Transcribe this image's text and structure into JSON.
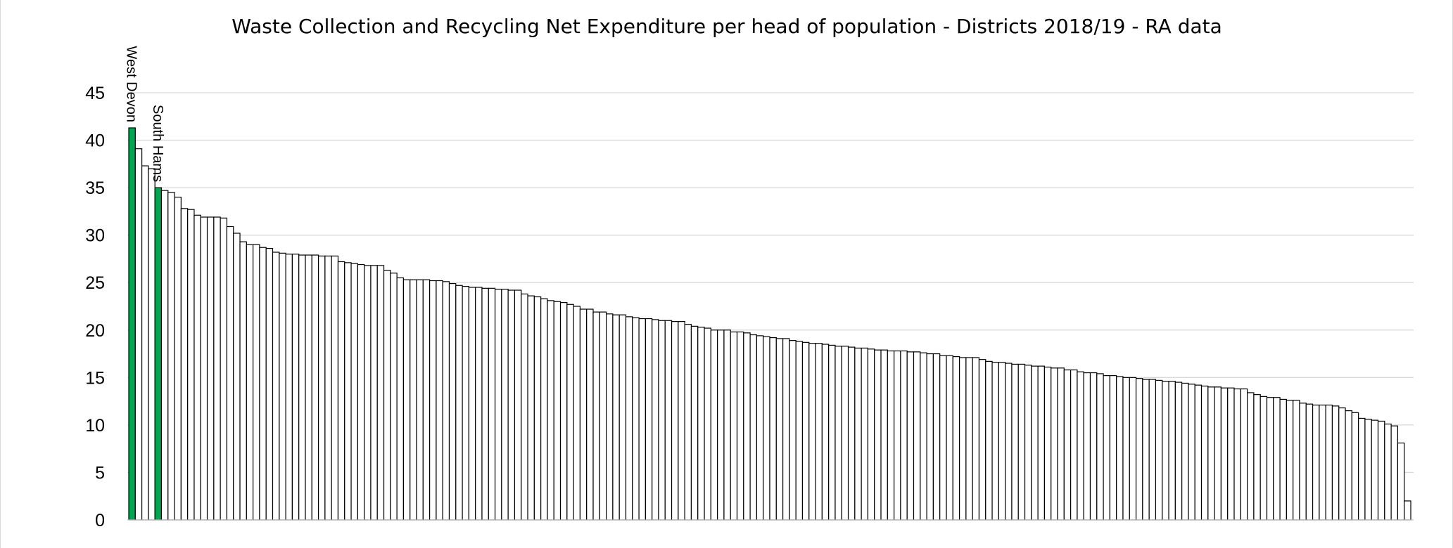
{
  "chart_data": {
    "type": "bar",
    "title": "Waste Collection and Recycling Net Expenditure per head of population - Districts 2018/19 - RA data",
    "xlabel": "",
    "ylabel": "",
    "ylim": [
      0,
      45
    ],
    "yticks": [
      0,
      5,
      10,
      15,
      20,
      25,
      30,
      35,
      40,
      45
    ],
    "grid": true,
    "legend": "none",
    "colors": {
      "highlight": "#00a651",
      "bar_fill": "#ffffff",
      "bar_stroke": "#000000",
      "grid": "#d9d9d9"
    },
    "highlights": [
      {
        "label": "West Devon",
        "index": 0
      },
      {
        "label": "South Hams",
        "index": 4
      }
    ],
    "values": [
      41.3,
      39.1,
      37.3,
      37.0,
      35.0,
      34.7,
      34.5,
      34.0,
      32.8,
      32.7,
      32.1,
      31.9,
      31.9,
      31.9,
      31.8,
      30.9,
      30.2,
      29.3,
      29.0,
      29.0,
      28.7,
      28.6,
      28.2,
      28.1,
      28.0,
      28.0,
      27.9,
      27.9,
      27.9,
      27.8,
      27.8,
      27.8,
      27.2,
      27.1,
      27.0,
      26.9,
      26.8,
      26.8,
      26.8,
      26.3,
      26.0,
      25.5,
      25.3,
      25.3,
      25.3,
      25.3,
      25.2,
      25.2,
      25.1,
      24.9,
      24.7,
      24.6,
      24.5,
      24.5,
      24.4,
      24.4,
      24.3,
      24.3,
      24.2,
      24.2,
      23.8,
      23.6,
      23.5,
      23.3,
      23.1,
      23.0,
      22.9,
      22.7,
      22.5,
      22.2,
      22.2,
      21.9,
      21.9,
      21.7,
      21.6,
      21.6,
      21.4,
      21.3,
      21.2,
      21.2,
      21.1,
      21.0,
      21.0,
      20.9,
      20.9,
      20.6,
      20.4,
      20.3,
      20.2,
      20.0,
      20.0,
      20.0,
      19.8,
      19.8,
      19.7,
      19.5,
      19.4,
      19.3,
      19.2,
      19.1,
      19.1,
      18.9,
      18.8,
      18.7,
      18.6,
      18.6,
      18.5,
      18.4,
      18.3,
      18.3,
      18.2,
      18.1,
      18.1,
      18.0,
      17.9,
      17.9,
      17.8,
      17.8,
      17.8,
      17.7,
      17.7,
      17.6,
      17.5,
      17.5,
      17.3,
      17.3,
      17.2,
      17.1,
      17.1,
      17.1,
      16.9,
      16.7,
      16.6,
      16.6,
      16.5,
      16.4,
      16.4,
      16.3,
      16.2,
      16.2,
      16.1,
      16.0,
      16.0,
      15.8,
      15.8,
      15.6,
      15.5,
      15.5,
      15.4,
      15.2,
      15.2,
      15.1,
      15.0,
      15.0,
      14.9,
      14.8,
      14.8,
      14.7,
      14.6,
      14.6,
      14.5,
      14.4,
      14.3,
      14.2,
      14.1,
      14.0,
      14.0,
      13.9,
      13.9,
      13.8,
      13.8,
      13.4,
      13.2,
      13.0,
      12.9,
      12.9,
      12.7,
      12.6,
      12.6,
      12.3,
      12.2,
      12.1,
      12.1,
      12.1,
      12.0,
      11.8,
      11.5,
      11.3,
      10.7,
      10.6,
      10.5,
      10.4,
      10.1,
      9.9,
      8.1,
      2.0
    ]
  }
}
